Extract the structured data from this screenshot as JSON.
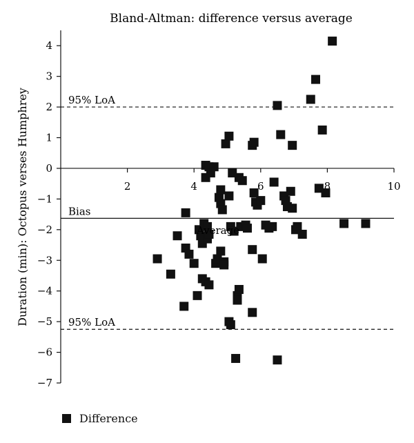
{
  "chart_data": {
    "type": "scatter",
    "title": "Bland-Altman: difference versus average",
    "xlabel": "Average",
    "ylabel": "Duration (min): Octopus verses Humphrey",
    "xlim": [
      0,
      10
    ],
    "ylim": [
      -7,
      4.5
    ],
    "xticks": [
      2,
      4,
      6,
      8,
      10
    ],
    "yticks": [
      4,
      3,
      2,
      1,
      0,
      -1,
      -2,
      -3,
      -4,
      -5,
      -6,
      -7
    ],
    "grid": false,
    "legend_position": "bottom-left",
    "reference_lines": [
      {
        "label": "95% LoA",
        "y": 2.0,
        "style": "dashed"
      },
      {
        "label": "Bias",
        "y": -1.63,
        "style": "solid"
      },
      {
        "label": "95% LoA",
        "y": -5.25,
        "style": "dashed"
      }
    ],
    "series": [
      {
        "name": "Difference",
        "marker": "square",
        "points": [
          [
            2.9,
            -2.95
          ],
          [
            3.3,
            -3.45
          ],
          [
            3.5,
            -2.2
          ],
          [
            3.7,
            -4.5
          ],
          [
            3.75,
            -2.6
          ],
          [
            3.75,
            -1.45
          ],
          [
            3.85,
            -2.8
          ],
          [
            4.0,
            -3.1
          ],
          [
            4.1,
            -4.15
          ],
          [
            4.15,
            -2.0
          ],
          [
            4.2,
            -2.2
          ],
          [
            4.25,
            -2.45
          ],
          [
            4.3,
            -1.8
          ],
          [
            4.25,
            -3.6
          ],
          [
            4.35,
            -3.7
          ],
          [
            4.4,
            -2.3
          ],
          [
            4.45,
            -2.15
          ],
          [
            4.4,
            -1.9
          ],
          [
            4.35,
            -0.3
          ],
          [
            4.35,
            0.1
          ],
          [
            4.45,
            0.05
          ],
          [
            4.5,
            -0.15
          ],
          [
            4.45,
            -3.8
          ],
          [
            4.6,
            0.05
          ],
          [
            4.65,
            -3.1
          ],
          [
            4.7,
            -2.95
          ],
          [
            4.75,
            -0.95
          ],
          [
            4.8,
            -1.15
          ],
          [
            4.8,
            -0.7
          ],
          [
            4.85,
            -1.35
          ],
          [
            4.8,
            -2.7
          ],
          [
            4.9,
            -3.05
          ],
          [
            4.9,
            -3.15
          ],
          [
            4.95,
            0.8
          ],
          [
            5.05,
            1.05
          ],
          [
            5.05,
            -0.9
          ],
          [
            5.1,
            -1.9
          ],
          [
            5.05,
            -5.0
          ],
          [
            5.1,
            -5.1
          ],
          [
            5.15,
            -0.15
          ],
          [
            5.2,
            -2.05
          ],
          [
            5.25,
            -6.2
          ],
          [
            5.3,
            -4.15
          ],
          [
            5.3,
            -4.3
          ],
          [
            5.35,
            -0.3
          ],
          [
            5.4,
            -1.9
          ],
          [
            5.45,
            -0.4
          ],
          [
            5.35,
            -3.95
          ],
          [
            5.55,
            -1.85
          ],
          [
            5.6,
            -1.95
          ],
          [
            5.75,
            0.75
          ],
          [
            5.8,
            -0.8
          ],
          [
            5.85,
            -1.1
          ],
          [
            5.8,
            0.85
          ],
          [
            5.75,
            -2.65
          ],
          [
            5.75,
            -4.7
          ],
          [
            5.9,
            -1.2
          ],
          [
            6.0,
            -1.05
          ],
          [
            6.05,
            -2.95
          ],
          [
            6.15,
            -1.85
          ],
          [
            6.25,
            -1.95
          ],
          [
            6.35,
            -1.9
          ],
          [
            6.4,
            -0.45
          ],
          [
            6.5,
            2.05
          ],
          [
            6.5,
            -6.25
          ],
          [
            6.6,
            1.1
          ],
          [
            6.7,
            -0.9
          ],
          [
            6.75,
            -1.05
          ],
          [
            6.8,
            -1.25
          ],
          [
            6.9,
            -0.75
          ],
          [
            6.95,
            0.75
          ],
          [
            6.95,
            -1.3
          ],
          [
            7.05,
            -2.0
          ],
          [
            7.1,
            -1.9
          ],
          [
            7.25,
            -2.15
          ],
          [
            7.5,
            2.25
          ],
          [
            7.65,
            2.9
          ],
          [
            7.75,
            -0.65
          ],
          [
            7.85,
            1.25
          ],
          [
            7.95,
            -0.8
          ],
          [
            8.15,
            4.15
          ],
          [
            8.5,
            -1.8
          ],
          [
            9.15,
            -1.8
          ]
        ]
      }
    ]
  }
}
